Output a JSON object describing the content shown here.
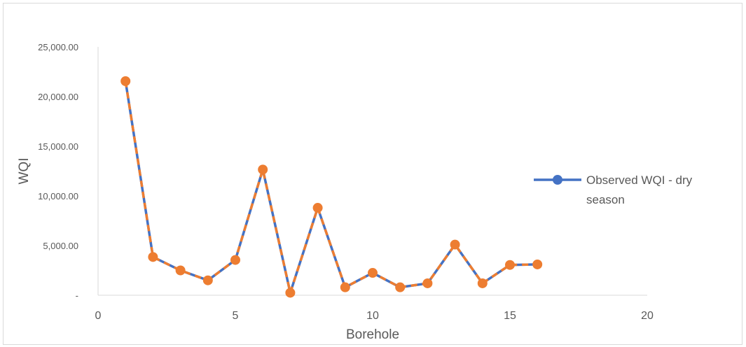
{
  "chart_data": {
    "type": "line",
    "title": "",
    "xlabel": "Borehole",
    "ylabel": "WQI",
    "xlim": [
      0,
      20
    ],
    "ylim": [
      0,
      25000
    ],
    "x_ticks": [
      0,
      5,
      10,
      15,
      20
    ],
    "x_tick_labels": [
      "0",
      "5",
      "10",
      "15",
      "20"
    ],
    "y_ticks": [
      0,
      5000,
      10000,
      15000,
      20000,
      25000
    ],
    "y_tick_labels": [
      "-",
      "5,000.00",
      "10,000.00",
      "15,000.00",
      "20,000.00",
      "25,000.00"
    ],
    "grid": false,
    "legend_position": "right",
    "series": [
      {
        "name": "Observed WQI - dry season",
        "line_color": "#4472c4",
        "dash_color": "#ed7d31",
        "marker_color": "#ed7d31",
        "x": [
          1,
          2,
          3,
          4,
          5,
          6,
          7,
          8,
          9,
          10,
          11,
          12,
          13,
          14,
          15,
          16
        ],
        "y": [
          21550,
          3850,
          2500,
          1500,
          3550,
          12650,
          250,
          8800,
          800,
          2250,
          800,
          1200,
          5100,
          1200,
          3050,
          3100
        ]
      }
    ],
    "legend": {
      "lines": [
        "Observed WQI - dry",
        "season"
      ]
    }
  }
}
